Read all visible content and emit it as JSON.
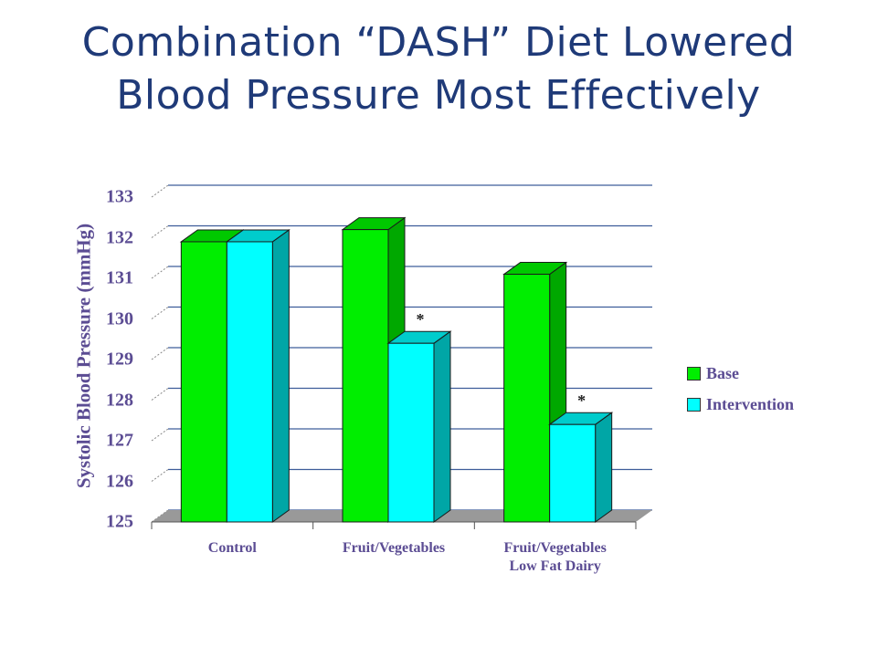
{
  "title_lines": [
    "Combination “DASH” Diet Lowered",
    "Blood Pressure Most Effectively"
  ],
  "colors": {
    "title": "#1f3a78",
    "axis_text": "#5b4c93",
    "base_front": "#00ee00",
    "base_side": "#00a800",
    "base_top": "#00c800",
    "intervention_front": "#00ffff",
    "intervention_side": "#00a6a6",
    "intervention_top": "#00cccc"
  },
  "chart_data": {
    "type": "bar",
    "title": "Combination “DASH” Diet Lowered Blood Pressure Most Effectively",
    "ylabel": "Systolic Blood Pressure (mmHg)",
    "xlabel": "",
    "ylim": [
      125,
      133
    ],
    "yticks": [
      "125",
      "126",
      "127",
      "128",
      "129",
      "130",
      "131",
      "132",
      "133"
    ],
    "grid": true,
    "legend_position": "right",
    "categories": [
      [
        "Control"
      ],
      [
        "Fruit/Vegetables"
      ],
      [
        "Fruit/Vegetables",
        "Low Fat Dairy"
      ]
    ],
    "series": [
      {
        "name": "Base",
        "values": [
          131.9,
          132.2,
          131.1
        ]
      },
      {
        "name": "Intervention",
        "values": [
          131.9,
          129.4,
          127.4
        ]
      }
    ],
    "annotations": [
      {
        "category_index": 1,
        "series_index": 1,
        "text": "*"
      },
      {
        "category_index": 2,
        "series_index": 1,
        "text": "*"
      }
    ]
  }
}
